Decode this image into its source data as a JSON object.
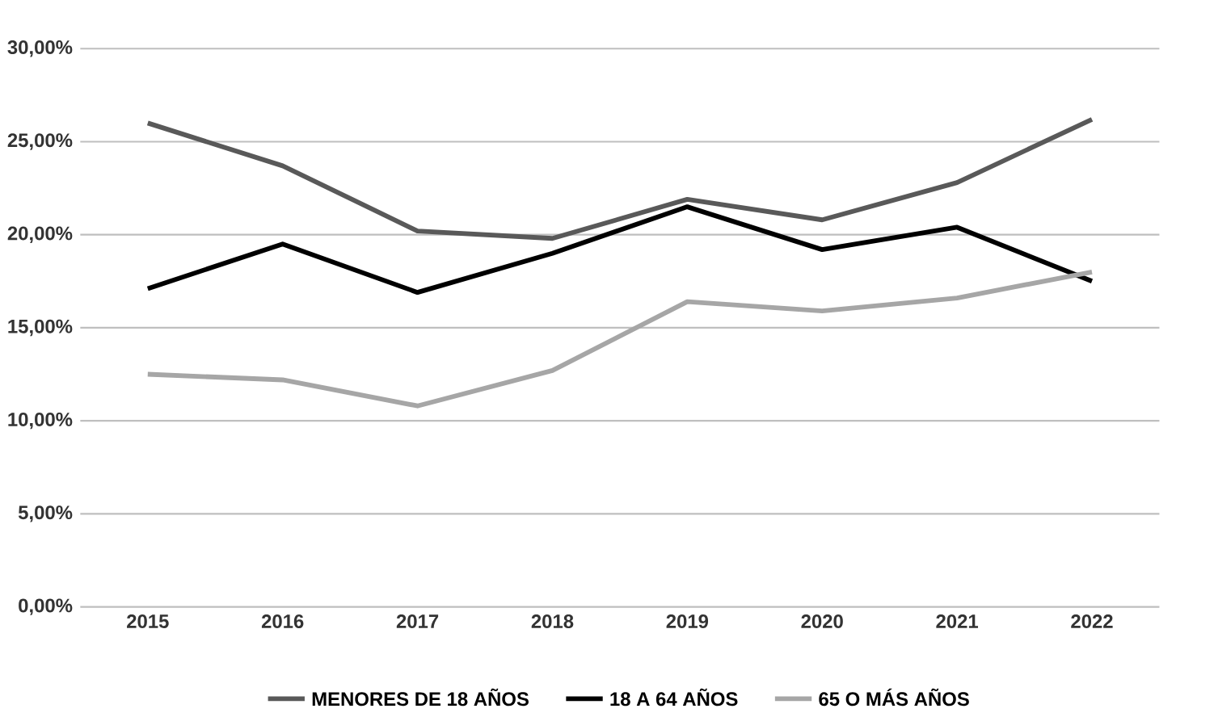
{
  "chart_data": {
    "type": "line",
    "categories": [
      "2015",
      "2016",
      "2017",
      "2018",
      "2019",
      "2020",
      "2021",
      "2022"
    ],
    "series": [
      {
        "name": "MENORES DE 18 AÑOS",
        "color": "#595959",
        "values": [
          26.0,
          23.7,
          20.2,
          19.8,
          21.9,
          20.8,
          22.8,
          26.2
        ]
      },
      {
        "name": "18 A 64 AÑOS",
        "color": "#000000",
        "values": [
          17.1,
          19.5,
          16.9,
          19.0,
          21.5,
          19.2,
          20.4,
          17.5
        ]
      },
      {
        "name": "65 O MÁS AÑOS",
        "color": "#a6a6a6",
        "values": [
          12.5,
          12.2,
          10.8,
          12.7,
          16.4,
          15.9,
          16.6,
          18.0
        ]
      }
    ],
    "ylim": [
      0,
      30
    ],
    "yticks": [
      {
        "value": 0,
        "label": "0,00%"
      },
      {
        "value": 5,
        "label": "5,00%"
      },
      {
        "value": 10,
        "label": "10,00%"
      },
      {
        "value": 15,
        "label": "15,00%"
      },
      {
        "value": 20,
        "label": "20,00%"
      },
      {
        "value": 25,
        "label": "25,00%"
      },
      {
        "value": 30,
        "label": "30,00%"
      }
    ],
    "grid": "y",
    "legend": "bottom",
    "marker": "none",
    "line_style": "solid"
  }
}
